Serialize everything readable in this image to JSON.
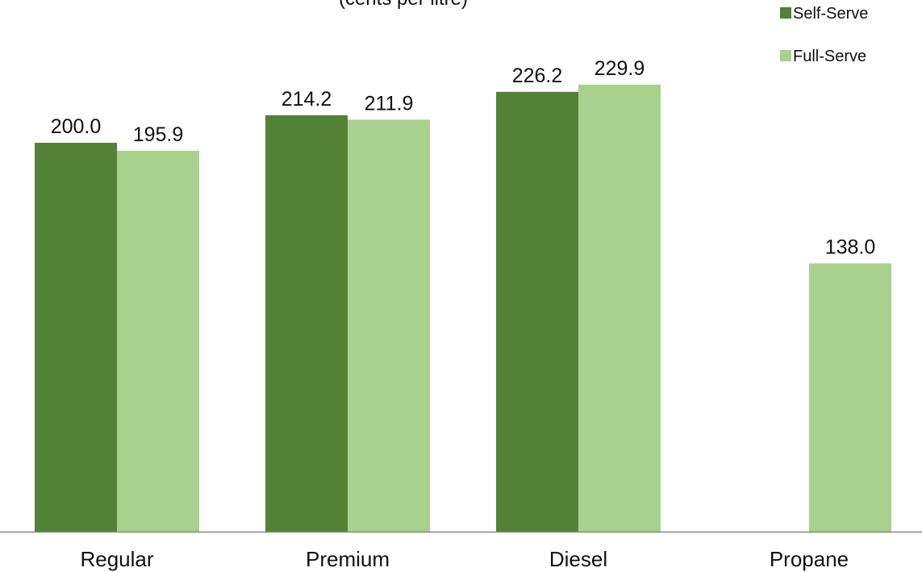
{
  "chart_data": {
    "type": "bar",
    "title": "(cents per litre)",
    "categories": [
      "Regular",
      "Premium",
      "Diesel",
      "Propane"
    ],
    "series": [
      {
        "name": "Self-Serve",
        "color": "#538135",
        "values": [
          200.0,
          214.2,
          226.2,
          null
        ],
        "labels": [
          "200.0",
          "214.2",
          "226.2",
          ""
        ]
      },
      {
        "name": "Full-Serve",
        "color": "#a9d18e",
        "values": [
          195.9,
          211.9,
          229.9,
          138.0
        ],
        "labels": [
          "195.9",
          "211.9",
          "229.9",
          "138.0"
        ]
      }
    ],
    "ylim": [
      0,
      240
    ],
    "grid": false,
    "legend_position": "top-right",
    "axis_line_color": "#888888"
  }
}
